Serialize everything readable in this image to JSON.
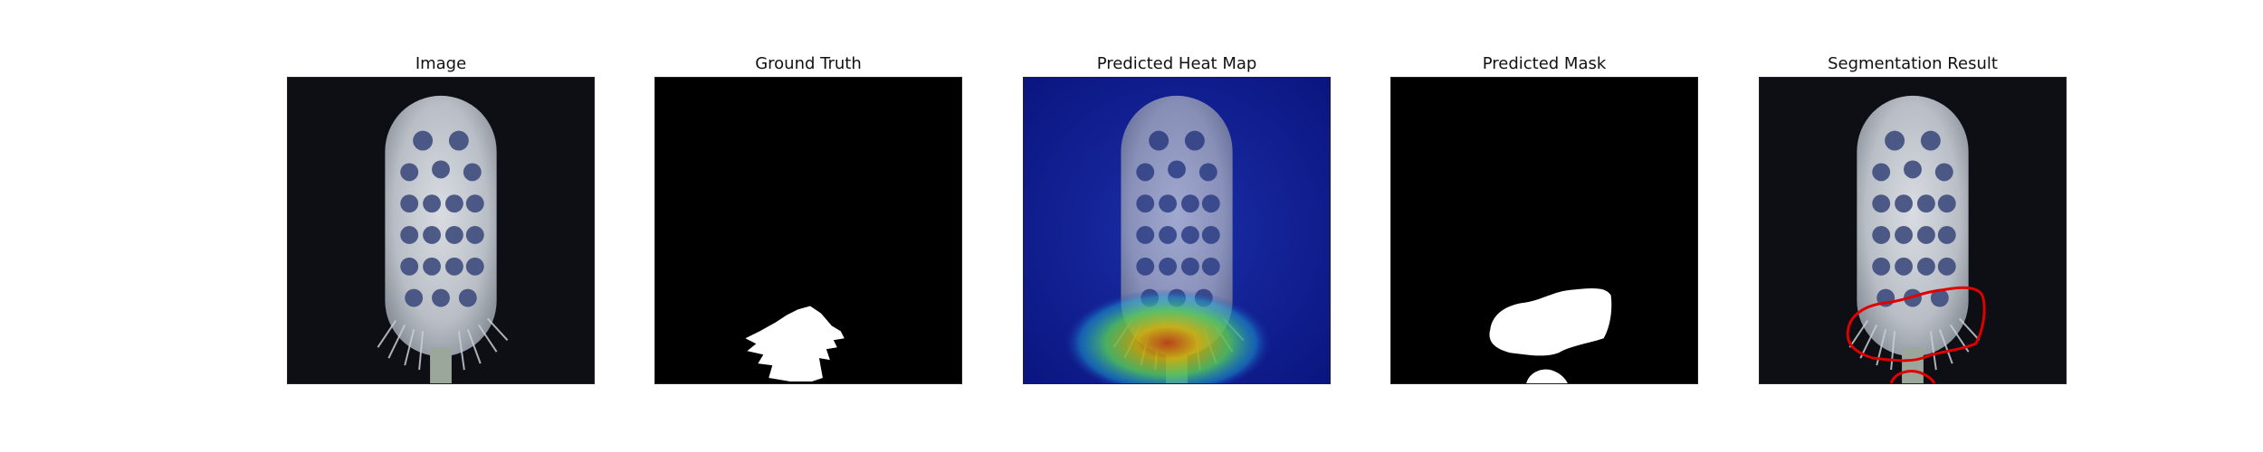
{
  "figure": {
    "panels": [
      {
        "title": "Image"
      },
      {
        "title": "Ground Truth"
      },
      {
        "title": "Predicted Heat Map"
      },
      {
        "title": "Predicted Mask"
      },
      {
        "title": "Segmentation Result"
      }
    ]
  },
  "colors": {
    "background_dark": "#0d0f14",
    "mask_black": "#000000",
    "mask_white": "#ffffff",
    "contour_red": "#e00000",
    "heat_low": "#0b1a8c",
    "heat_high": "#c04a00",
    "bristle_blue": "#3a4a7a",
    "brush_body": "#c8ccd2"
  }
}
